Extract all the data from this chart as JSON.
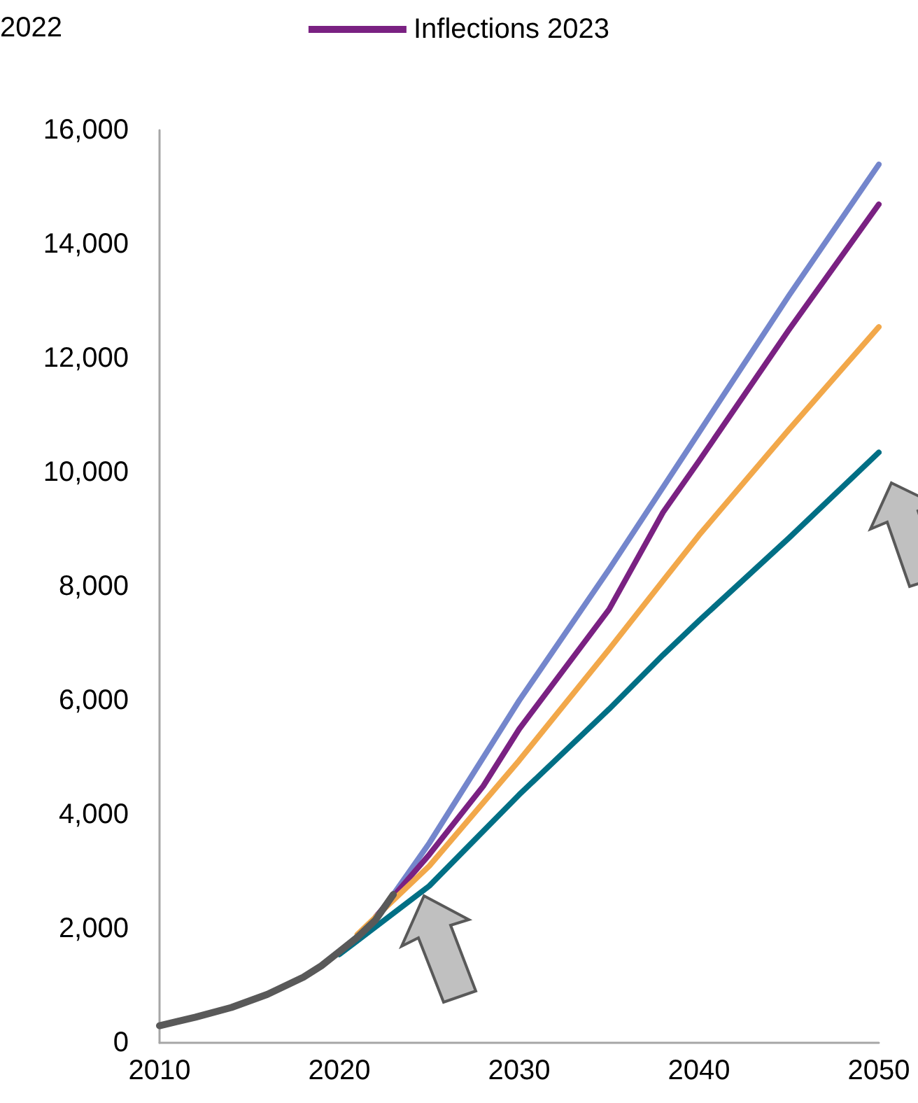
{
  "chart_data": {
    "type": "line",
    "annotations": [
      "2022"
    ],
    "legend": "top",
    "marker": "none",
    "line_style": "solid",
    "grid": false,
    "xlim": [
      2010,
      2050
    ],
    "xticks": [
      2010,
      2020,
      2030,
      2040,
      2050
    ],
    "ylim": [
      0,
      16000
    ],
    "yticks": [
      0,
      {
        "value": 2000,
        "label": "2,000"
      },
      {
        "value": 4000,
        "label": "4,000"
      },
      {
        "value": 6000,
        "label": "6,000"
      },
      {
        "value": 8000,
        "label": "8,000"
      },
      {
        "value": 10000,
        "label": "10,000"
      },
      {
        "value": 12000,
        "label": "12,000"
      },
      {
        "value": 14000,
        "label": "14,000"
      },
      {
        "value": 16000,
        "label": "16,000"
      }
    ],
    "series": [
      {
        "color": "#7486cc",
        "x": [
          2023,
          2025,
          2027,
          2030,
          2035,
          2040,
          2045,
          2050
        ],
        "values": [
          2600,
          3500,
          4500,
          6000,
          8300,
          10700,
          13100,
          15400
        ]
      },
      {
        "name": "Inflections 2023",
        "color": "#7a2182",
        "x": [
          2022,
          2025,
          2028,
          2030,
          2035,
          2038,
          2040,
          2045,
          2050
        ],
        "values": [
          2200,
          3300,
          4500,
          5500,
          7600,
          9300,
          10200,
          12500,
          14700
        ]
      },
      {
        "color": "#f2a84a",
        "x": [
          2021,
          2025,
          2030,
          2035,
          2038,
          2040,
          2045,
          2050
        ],
        "values": [
          1900,
          3100,
          4950,
          6900,
          8100,
          8900,
          10750,
          12550
        ]
      },
      {
        "color": "#006f85",
        "x": [
          2020,
          2025,
          2030,
          2035,
          2038,
          2040,
          2045,
          2050
        ],
        "values": [
          1550,
          2750,
          4350,
          5850,
          6800,
          7400,
          8850,
          10350
        ]
      },
      {
        "color": "#595959",
        "x": [
          2010,
          2012,
          2014,
          2016,
          2018,
          2019,
          2020,
          2021,
          2022,
          2023
        ],
        "values": [
          300,
          450,
          620,
          850,
          1150,
          1350,
          1600,
          1850,
          2150,
          2600
        ]
      }
    ]
  }
}
